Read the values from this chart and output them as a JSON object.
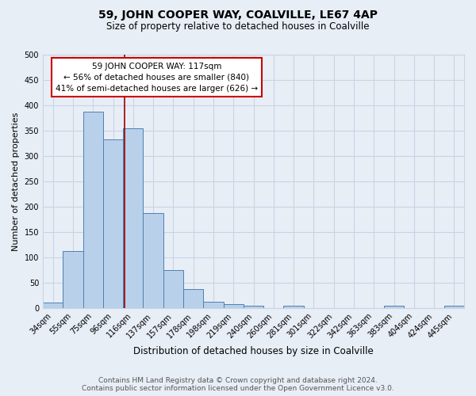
{
  "title": "59, JOHN COOPER WAY, COALVILLE, LE67 4AP",
  "subtitle": "Size of property relative to detached houses in Coalville",
  "xlabel": "Distribution of detached houses by size in Coalville",
  "ylabel": "Number of detached properties",
  "bar_labels": [
    "34sqm",
    "55sqm",
    "75sqm",
    "96sqm",
    "116sqm",
    "137sqm",
    "157sqm",
    "178sqm",
    "198sqm",
    "219sqm",
    "240sqm",
    "260sqm",
    "281sqm",
    "301sqm",
    "322sqm",
    "342sqm",
    "363sqm",
    "383sqm",
    "404sqm",
    "424sqm",
    "445sqm"
  ],
  "bar_values": [
    11,
    113,
    387,
    332,
    355,
    188,
    75,
    38,
    13,
    7,
    4,
    0,
    4,
    0,
    0,
    0,
    0,
    4,
    0,
    0,
    4
  ],
  "bar_color": "#b8d0ea",
  "bar_edge_color": "#5080b0",
  "grid_color": "#c8d4e4",
  "bg_color": "#e8eef6",
  "vline_color": "#990000",
  "annotation_line1": "59 JOHN COOPER WAY: 117sqm",
  "annotation_line2": "← 56% of detached houses are smaller (840)",
  "annotation_line3": "41% of semi-detached houses are larger (626) →",
  "annotation_box_color": "#ffffff",
  "annotation_box_edge": "#cc0000",
  "footer": "Contains HM Land Registry data © Crown copyright and database right 2024.\nContains public sector information licensed under the Open Government Licence v3.0.",
  "ylim": [
    0,
    500
  ],
  "yticks": [
    0,
    50,
    100,
    150,
    200,
    250,
    300,
    350,
    400,
    450,
    500
  ]
}
